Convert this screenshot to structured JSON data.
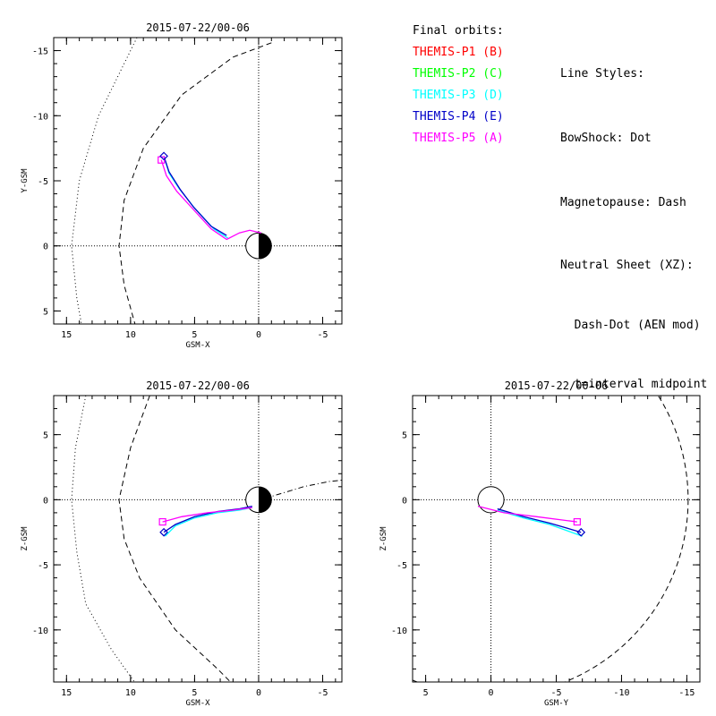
{
  "chart_data": [
    {
      "id": "xy",
      "type": "line",
      "title": "2015-07-22/00-06",
      "xlabel": "GSM-X",
      "ylabel": "Y-GSM",
      "xlim": [
        16,
        -6.5
      ],
      "ylim": [
        -16,
        6
      ],
      "xticks": [
        15,
        10,
        5,
        0,
        -5
      ],
      "yticks": [
        -15,
        -10,
        -5,
        0,
        5
      ],
      "series": [
        {
          "name": "THEMIS-P3 (D)",
          "color": "#00ffff",
          "points": [
            [
              7.4,
              -6.9
            ],
            [
              7.0,
              -5.6
            ],
            [
              6.2,
              -4.4
            ],
            [
              5.0,
              -2.9
            ],
            [
              3.5,
              -1.3
            ],
            [
              2.4,
              -0.6
            ]
          ]
        },
        {
          "name": "THEMIS-P4 (E)",
          "color": "#0000c8",
          "points": [
            [
              7.4,
              -6.9
            ],
            [
              7.0,
              -5.7
            ],
            [
              6.1,
              -4.3
            ],
            [
              5.1,
              -3.0
            ],
            [
              3.7,
              -1.5
            ],
            [
              2.5,
              -0.8
            ]
          ]
        },
        {
          "name": "THEMIS-P5 (A)",
          "color": "#ff00ff",
          "points": [
            [
              7.6,
              -6.6
            ],
            [
              7.2,
              -5.4
            ],
            [
              6.4,
              -4.2
            ],
            [
              5.2,
              -2.9
            ],
            [
              3.7,
              -1.3
            ],
            [
              2.5,
              -0.5
            ],
            [
              1.5,
              -1.0
            ],
            [
              0.7,
              -1.2
            ],
            [
              -0.2,
              -1.0
            ]
          ]
        }
      ],
      "markers": [
        {
          "shape": "square",
          "color": "#ff00ff",
          "x": 7.6,
          "y": -6.6
        },
        {
          "shape": "diamond",
          "color": "#0000c8",
          "x": 7.4,
          "y": -6.9
        }
      ],
      "boundaries": [
        {
          "kind": "bowshock",
          "style": "dotted",
          "points": [
            [
              9.5,
              -16
            ],
            [
              12.5,
              -10
            ],
            [
              14,
              -5
            ],
            [
              14.6,
              0
            ],
            [
              14.2,
              4
            ],
            [
              13.8,
              6.2
            ]
          ]
        },
        {
          "kind": "magnetopause",
          "style": "dashed",
          "points": [
            [
              -1,
              -15.6
            ],
            [
              2,
              -14.5
            ],
            [
              6,
              -11.6
            ],
            [
              9,
              -7.5
            ],
            [
              10.5,
              -3.5
            ],
            [
              10.9,
              0
            ],
            [
              10.5,
              3
            ],
            [
              9.6,
              6.2
            ]
          ]
        }
      ],
      "earth": {
        "fill": "night side black"
      },
      "grid": "dotted zero lines"
    },
    {
      "id": "xz",
      "type": "line",
      "title": "2015-07-22/00-06",
      "xlabel": "GSM-X",
      "ylabel": "Z-GSM",
      "xlim": [
        16,
        -6.5
      ],
      "ylim": [
        8,
        -14
      ],
      "xticks": [
        15,
        10,
        5,
        0,
        -5
      ],
      "yticks": [
        5,
        0,
        -5,
        -10
      ],
      "series": [
        {
          "name": "THEMIS-P3 (D)",
          "color": "#00ffff",
          "points": [
            [
              7.3,
              -2.8
            ],
            [
              6.5,
              -2.0
            ],
            [
              5.0,
              -1.4
            ],
            [
              3.2,
              -1.0
            ],
            [
              1.5,
              -0.8
            ],
            [
              0.5,
              -0.6
            ]
          ]
        },
        {
          "name": "THEMIS-P4 (E)",
          "color": "#0000c8",
          "points": [
            [
              7.4,
              -2.5
            ],
            [
              6.5,
              -1.9
            ],
            [
              5.0,
              -1.3
            ],
            [
              3.2,
              -0.9
            ],
            [
              1.5,
              -0.7
            ],
            [
              0.5,
              -0.5
            ]
          ]
        },
        {
          "name": "THEMIS-P5 (A)",
          "color": "#ff00ff",
          "points": [
            [
              7.5,
              -1.7
            ],
            [
              6.0,
              -1.3
            ],
            [
              4.0,
              -1.0
            ],
            [
              2.0,
              -0.8
            ],
            [
              0.5,
              -0.6
            ]
          ]
        }
      ],
      "markers": [
        {
          "shape": "square",
          "color": "#ff00ff",
          "x": 7.5,
          "y": -1.7
        },
        {
          "shape": "diamond",
          "color": "#0000c8",
          "x": 7.4,
          "y": -2.5
        }
      ],
      "boundaries": [
        {
          "kind": "bowshock",
          "style": "dotted",
          "points": [
            [
              13.5,
              8
            ],
            [
              14.3,
              4
            ],
            [
              14.6,
              0
            ],
            [
              14.2,
              -4
            ],
            [
              13.5,
              -8
            ],
            [
              11.5,
              -11.5
            ],
            [
              9.7,
              -14
            ]
          ]
        },
        {
          "kind": "magnetopause",
          "style": "dashed",
          "points": [
            [
              8.5,
              8
            ],
            [
              10.0,
              4
            ],
            [
              10.9,
              0
            ],
            [
              10.5,
              -3
            ],
            [
              9.3,
              -6
            ],
            [
              6.5,
              -10
            ],
            [
              3.2,
              -13
            ],
            [
              2.2,
              -14
            ]
          ]
        },
        {
          "kind": "neutral-sheet",
          "style": "dash-dot",
          "points": [
            [
              -0.5,
              0.1
            ],
            [
              -1.5,
              0.4
            ],
            [
              -2.5,
              0.7
            ],
            [
              -3.5,
              1.0
            ],
            [
              -4.5,
              1.2
            ],
            [
              -5.5,
              1.4
            ],
            [
              -6.5,
              1.5
            ]
          ]
        }
      ],
      "earth": {
        "fill": "night side black"
      },
      "grid": "dotted zero lines"
    },
    {
      "id": "yz",
      "type": "line",
      "title": "2015-07-22/00-06",
      "xlabel": "GSM-Y",
      "ylabel": "Z-GSM",
      "xlim": [
        6,
        -16
      ],
      "ylim": [
        8,
        -14
      ],
      "xticks": [
        5,
        0,
        -5,
        -10,
        -15
      ],
      "yticks": [
        5,
        0,
        -5,
        -10
      ],
      "series": [
        {
          "name": "THEMIS-P3 (D)",
          "color": "#00ffff",
          "points": [
            [
              -0.5,
              -0.8
            ],
            [
              -2.5,
              -1.4
            ],
            [
              -4.5,
              -1.9
            ],
            [
              -7.0,
              -2.8
            ]
          ]
        },
        {
          "name": "THEMIS-P4 (E)",
          "color": "#0000c8",
          "points": [
            [
              -0.5,
              -0.7
            ],
            [
              -2.5,
              -1.3
            ],
            [
              -4.5,
              -1.8
            ],
            [
              -6.9,
              -2.5
            ]
          ]
        },
        {
          "name": "THEMIS-P5 (A)",
          "color": "#ff00ff",
          "points": [
            [
              1.0,
              -0.5
            ],
            [
              -1.0,
              -1.0
            ],
            [
              -3.5,
              -1.3
            ],
            [
              -6.6,
              -1.7
            ]
          ]
        }
      ],
      "markers": [
        {
          "shape": "square",
          "color": "#ff00ff",
          "x": -6.6,
          "y": -1.7
        },
        {
          "shape": "diamond",
          "color": "#0000c8",
          "x": -6.9,
          "y": -2.5
        }
      ],
      "boundaries": [
        {
          "kind": "magnetopause",
          "style": "dashed",
          "circle_radius": 15.1,
          "visible": true
        }
      ],
      "earth": {
        "fill": "white"
      },
      "grid": "dotted zero lines"
    }
  ],
  "legend": {
    "orbits_header": "Final orbits:",
    "orbits": [
      {
        "label": "THEMIS-P1 (B)",
        "color": "#ff0000"
      },
      {
        "label": "THEMIS-P2 (C)",
        "color": "#00ff00"
      },
      {
        "label": "THEMIS-P3 (D)",
        "color": "#00ffff"
      },
      {
        "label": "THEMIS-P4 (E)",
        "color": "#0000c8"
      },
      {
        "label": "THEMIS-P5 (A)",
        "color": "#ff00ff"
      }
    ],
    "styles_header": "Line Styles:",
    "styles": [
      "BowShock: Dot",
      "Magnetopause: Dash",
      "Neutral Sheet (XZ):",
      "  Dash-Dot (AEN mod)",
      "  t=interval midpoint"
    ]
  }
}
